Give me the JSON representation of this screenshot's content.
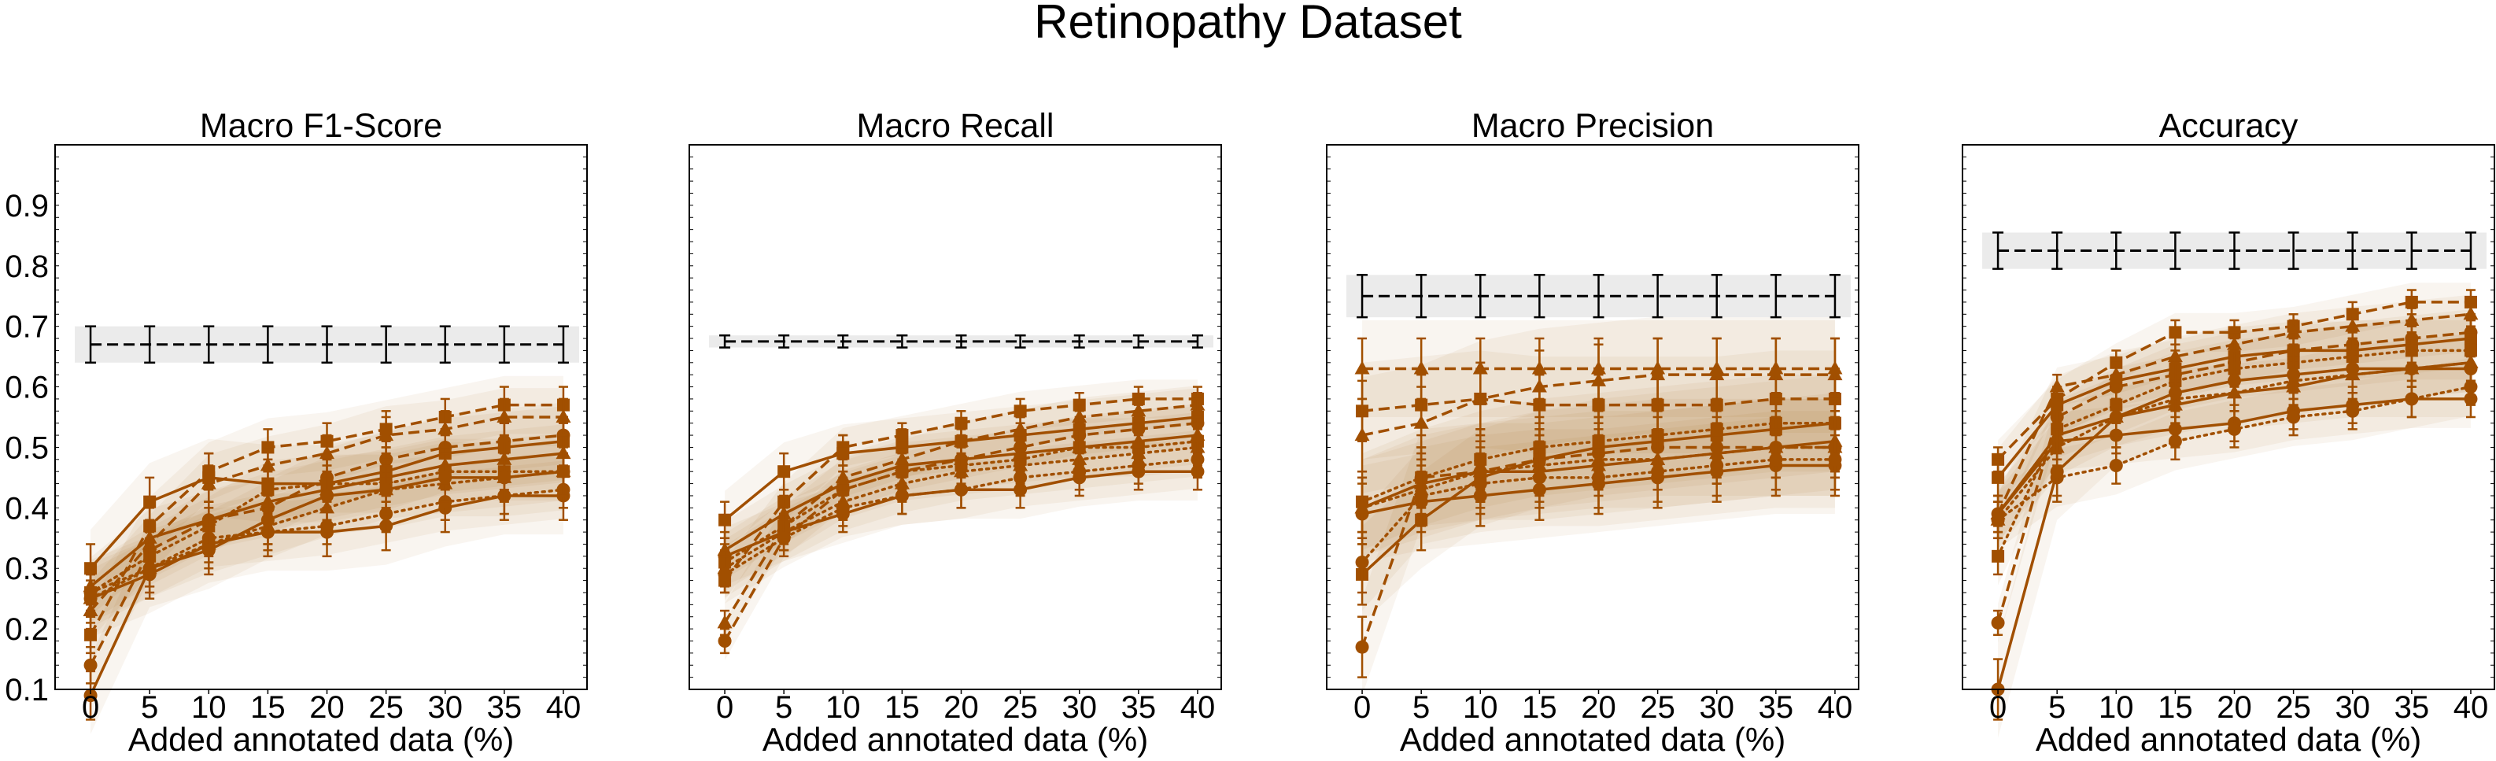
{
  "suptitle": "Retinopathy Dataset",
  "colors": {
    "series": "#a14f00",
    "baseline": "#000000",
    "baseline_band": "#ebebeb",
    "frame": "#000000"
  },
  "chart_data": [
    {
      "type": "line",
      "title": "Macro F1-Score",
      "xlabel": "Added annotated data (%)",
      "ylabel": "",
      "x": [
        0,
        5,
        10,
        15,
        20,
        25,
        30,
        35,
        40
      ],
      "xlim": [
        -3,
        42
      ],
      "ylim": [
        0.1,
        1.0
      ],
      "yticks": [
        "0.1",
        "0.2",
        "0.3",
        "0.4",
        "0.5",
        "0.6",
        "0.7",
        "0.8",
        "0.9"
      ],
      "show_yticklabels": true,
      "baseline": {
        "value": 0.67,
        "err": 0.03
      },
      "series": [
        {
          "marker": "square",
          "dash": "dashed",
          "values": [
            0.19,
            0.37,
            0.46,
            0.5,
            0.51,
            0.53,
            0.55,
            0.57,
            0.57
          ],
          "err": 0.03
        },
        {
          "marker": "triangle",
          "dash": "dashed",
          "values": [
            0.23,
            0.34,
            0.44,
            0.47,
            0.49,
            0.52,
            0.53,
            0.55,
            0.55
          ],
          "err": 0.03
        },
        {
          "marker": "circle",
          "dash": "dashed",
          "values": [
            0.14,
            0.33,
            0.38,
            0.4,
            0.45,
            0.48,
            0.5,
            0.51,
            0.52
          ],
          "err": 0.03
        },
        {
          "marker": "square",
          "dash": "solid",
          "values": [
            0.3,
            0.41,
            0.45,
            0.44,
            0.44,
            0.46,
            0.49,
            0.5,
            0.51
          ],
          "err": 0.04
        },
        {
          "marker": "triangle",
          "dash": "solid",
          "values": [
            0.27,
            0.35,
            0.38,
            0.41,
            0.43,
            0.45,
            0.47,
            0.48,
            0.49
          ],
          "err": 0.03
        },
        {
          "marker": "circle",
          "dash": "solid",
          "values": [
            0.25,
            0.29,
            0.34,
            0.36,
            0.36,
            0.37,
            0.4,
            0.42,
            0.42
          ],
          "err": 0.04
        },
        {
          "marker": "square",
          "dash": "dotted",
          "values": [
            0.26,
            0.32,
            0.37,
            0.43,
            0.44,
            0.44,
            0.46,
            0.46,
            0.46
          ],
          "err": 0.03
        },
        {
          "marker": "triangle",
          "dash": "dotted",
          "values": [
            0.25,
            0.3,
            0.34,
            0.37,
            0.4,
            0.43,
            0.44,
            0.45,
            0.46
          ],
          "err": 0.03
        },
        {
          "marker": "circle",
          "dash": "dotted",
          "values": [
            0.26,
            0.3,
            0.35,
            0.36,
            0.37,
            0.39,
            0.41,
            0.42,
            0.43
          ],
          "err": 0.03
        },
        {
          "marker": "circle",
          "dash": "solid",
          "values": [
            0.09,
            0.3,
            0.33,
            0.38,
            0.42,
            0.43,
            0.45,
            0.45,
            0.46
          ],
          "err": 0.04
        }
      ]
    },
    {
      "type": "line",
      "title": "Macro Recall",
      "xlabel": "Added annotated data (%)",
      "ylabel": "",
      "x": [
        0,
        5,
        10,
        15,
        20,
        25,
        30,
        35,
        40
      ],
      "xlim": [
        -3,
        42
      ],
      "ylim": [
        0.1,
        1.0
      ],
      "yticks": [
        "0.1",
        "0.2",
        "0.3",
        "0.4",
        "0.5",
        "0.6",
        "0.7",
        "0.8",
        "0.9"
      ],
      "show_yticklabels": false,
      "baseline": {
        "value": 0.675,
        "err": 0.01
      },
      "series": [
        {
          "marker": "square",
          "dash": "dashed",
          "values": [
            0.28,
            0.41,
            0.5,
            0.52,
            0.54,
            0.56,
            0.57,
            0.58,
            0.58
          ],
          "err": 0.02
        },
        {
          "marker": "triangle",
          "dash": "dashed",
          "values": [
            0.21,
            0.37,
            0.45,
            0.48,
            0.51,
            0.53,
            0.55,
            0.56,
            0.57
          ],
          "err": 0.02
        },
        {
          "marker": "circle",
          "dash": "dashed",
          "values": [
            0.18,
            0.35,
            0.43,
            0.46,
            0.48,
            0.5,
            0.52,
            0.53,
            0.54
          ],
          "err": 0.02
        },
        {
          "marker": "square",
          "dash": "solid",
          "values": [
            0.38,
            0.46,
            0.49,
            0.5,
            0.51,
            0.52,
            0.53,
            0.54,
            0.55
          ],
          "err": 0.03
        },
        {
          "marker": "triangle",
          "dash": "solid",
          "values": [
            0.33,
            0.39,
            0.44,
            0.47,
            0.48,
            0.49,
            0.5,
            0.51,
            0.52
          ],
          "err": 0.03
        },
        {
          "marker": "circle",
          "dash": "solid",
          "values": [
            0.32,
            0.36,
            0.39,
            0.42,
            0.43,
            0.43,
            0.45,
            0.46,
            0.46
          ],
          "err": 0.03
        },
        {
          "marker": "square",
          "dash": "dotted",
          "values": [
            0.31,
            0.37,
            0.43,
            0.46,
            0.47,
            0.48,
            0.5,
            0.5,
            0.51
          ],
          "err": 0.03
        },
        {
          "marker": "triangle",
          "dash": "dotted",
          "values": [
            0.3,
            0.36,
            0.41,
            0.44,
            0.46,
            0.47,
            0.48,
            0.49,
            0.5
          ],
          "err": 0.03
        },
        {
          "marker": "circle",
          "dash": "dotted",
          "values": [
            0.29,
            0.35,
            0.4,
            0.42,
            0.43,
            0.45,
            0.46,
            0.47,
            0.48
          ],
          "err": 0.03
        }
      ]
    },
    {
      "type": "line",
      "title": "Macro Precision",
      "xlabel": "Added annotated data (%)",
      "ylabel": "",
      "x": [
        0,
        5,
        10,
        15,
        20,
        25,
        30,
        35,
        40
      ],
      "xlim": [
        -3,
        42
      ],
      "ylim": [
        0.1,
        1.0
      ],
      "yticks": [
        "0.1",
        "0.2",
        "0.3",
        "0.4",
        "0.5",
        "0.6",
        "0.7",
        "0.8",
        "0.9"
      ],
      "show_yticklabels": false,
      "baseline": {
        "value": 0.75,
        "err": 0.035
      },
      "series": [
        {
          "marker": "square",
          "dash": "dashed",
          "values": [
            0.56,
            0.57,
            0.58,
            0.57,
            0.57,
            0.57,
            0.57,
            0.58,
            0.58
          ],
          "err": 0.05
        },
        {
          "marker": "triangle",
          "dash": "dashed",
          "values": [
            0.52,
            0.54,
            0.58,
            0.6,
            0.61,
            0.62,
            0.62,
            0.62,
            0.62
          ],
          "err": 0.06
        },
        {
          "marker": "circle",
          "dash": "dashed",
          "values": [
            0.17,
            0.45,
            0.46,
            0.48,
            0.49,
            0.5,
            0.5,
            0.5,
            0.5
          ],
          "err": 0.05
        },
        {
          "marker": "square",
          "dash": "solid",
          "values": [
            0.29,
            0.38,
            0.45,
            0.48,
            0.5,
            0.51,
            0.52,
            0.53,
            0.54
          ],
          "err": 0.05
        },
        {
          "marker": "triangle",
          "dash": "solid",
          "values": [
            0.4,
            0.44,
            0.46,
            0.46,
            0.47,
            0.48,
            0.49,
            0.5,
            0.51
          ],
          "err": 0.05
        },
        {
          "marker": "circle",
          "dash": "solid",
          "values": [
            0.39,
            0.41,
            0.42,
            0.43,
            0.44,
            0.45,
            0.46,
            0.47,
            0.47
          ],
          "err": 0.05
        },
        {
          "marker": "square",
          "dash": "dotted",
          "values": [
            0.41,
            0.45,
            0.48,
            0.5,
            0.51,
            0.52,
            0.53,
            0.54,
            0.54
          ],
          "err": 0.05
        },
        {
          "marker": "triangle",
          "dash": "dotted",
          "values": [
            0.4,
            0.43,
            0.46,
            0.47,
            0.48,
            0.48,
            0.49,
            0.5,
            0.5
          ],
          "err": 0.05
        },
        {
          "marker": "circle",
          "dash": "dotted",
          "values": [
            0.31,
            0.42,
            0.44,
            0.45,
            0.45,
            0.46,
            0.47,
            0.48,
            0.48
          ],
          "err": 0.05
        },
        {
          "marker": "triangle",
          "dash": "dashed",
          "values": [
            0.63,
            0.63,
            0.63,
            0.63,
            0.63,
            0.63,
            0.63,
            0.63,
            0.63
          ],
          "err": 0.05
        }
      ]
    },
    {
      "type": "line",
      "title": "Accuracy",
      "xlabel": "Added annotated data (%)",
      "ylabel": "",
      "x": [
        0,
        5,
        10,
        15,
        20,
        25,
        30,
        35,
        40
      ],
      "xlim": [
        -3,
        42
      ],
      "ylim": [
        0.1,
        1.0
      ],
      "yticks": [
        "0.1",
        "0.2",
        "0.3",
        "0.4",
        "0.5",
        "0.6",
        "0.7",
        "0.8",
        "0.9"
      ],
      "show_yticklabels": false,
      "baseline": {
        "value": 0.825,
        "err": 0.03
      },
      "series": [
        {
          "marker": "square",
          "dash": "dashed",
          "values": [
            0.48,
            0.58,
            0.64,
            0.69,
            0.69,
            0.7,
            0.72,
            0.74,
            0.74
          ],
          "err": 0.02
        },
        {
          "marker": "triangle",
          "dash": "dashed",
          "values": [
            0.39,
            0.6,
            0.62,
            0.65,
            0.67,
            0.69,
            0.7,
            0.71,
            0.72
          ],
          "err": 0.02
        },
        {
          "marker": "circle",
          "dash": "dashed",
          "values": [
            0.21,
            0.55,
            0.6,
            0.62,
            0.64,
            0.66,
            0.67,
            0.68,
            0.69
          ],
          "err": 0.02
        },
        {
          "marker": "square",
          "dash": "solid",
          "values": [
            0.45,
            0.57,
            0.61,
            0.63,
            0.65,
            0.66,
            0.66,
            0.67,
            0.68
          ],
          "err": 0.03
        },
        {
          "marker": "triangle",
          "dash": "solid",
          "values": [
            0.39,
            0.52,
            0.55,
            0.57,
            0.59,
            0.6,
            0.62,
            0.63,
            0.64
          ],
          "err": 0.03
        },
        {
          "marker": "circle",
          "dash": "solid",
          "values": [
            0.39,
            0.51,
            0.52,
            0.53,
            0.54,
            0.56,
            0.57,
            0.58,
            0.58
          ],
          "err": 0.03
        },
        {
          "marker": "square",
          "dash": "dotted",
          "values": [
            0.32,
            0.53,
            0.57,
            0.61,
            0.63,
            0.64,
            0.65,
            0.66,
            0.66
          ],
          "err": 0.03
        },
        {
          "marker": "triangle",
          "dash": "dotted",
          "values": [
            0.38,
            0.5,
            0.55,
            0.58,
            0.59,
            0.61,
            0.62,
            0.63,
            0.64
          ],
          "err": 0.03
        },
        {
          "marker": "circle",
          "dash": "dotted",
          "values": [
            0.38,
            0.45,
            0.47,
            0.51,
            0.53,
            0.55,
            0.56,
            0.58,
            0.6
          ],
          "err": 0.03
        },
        {
          "marker": "circle",
          "dash": "solid",
          "values": [
            0.1,
            0.46,
            0.55,
            0.59,
            0.61,
            0.62,
            0.63,
            0.63,
            0.63
          ],
          "err": 0.05
        }
      ]
    }
  ]
}
